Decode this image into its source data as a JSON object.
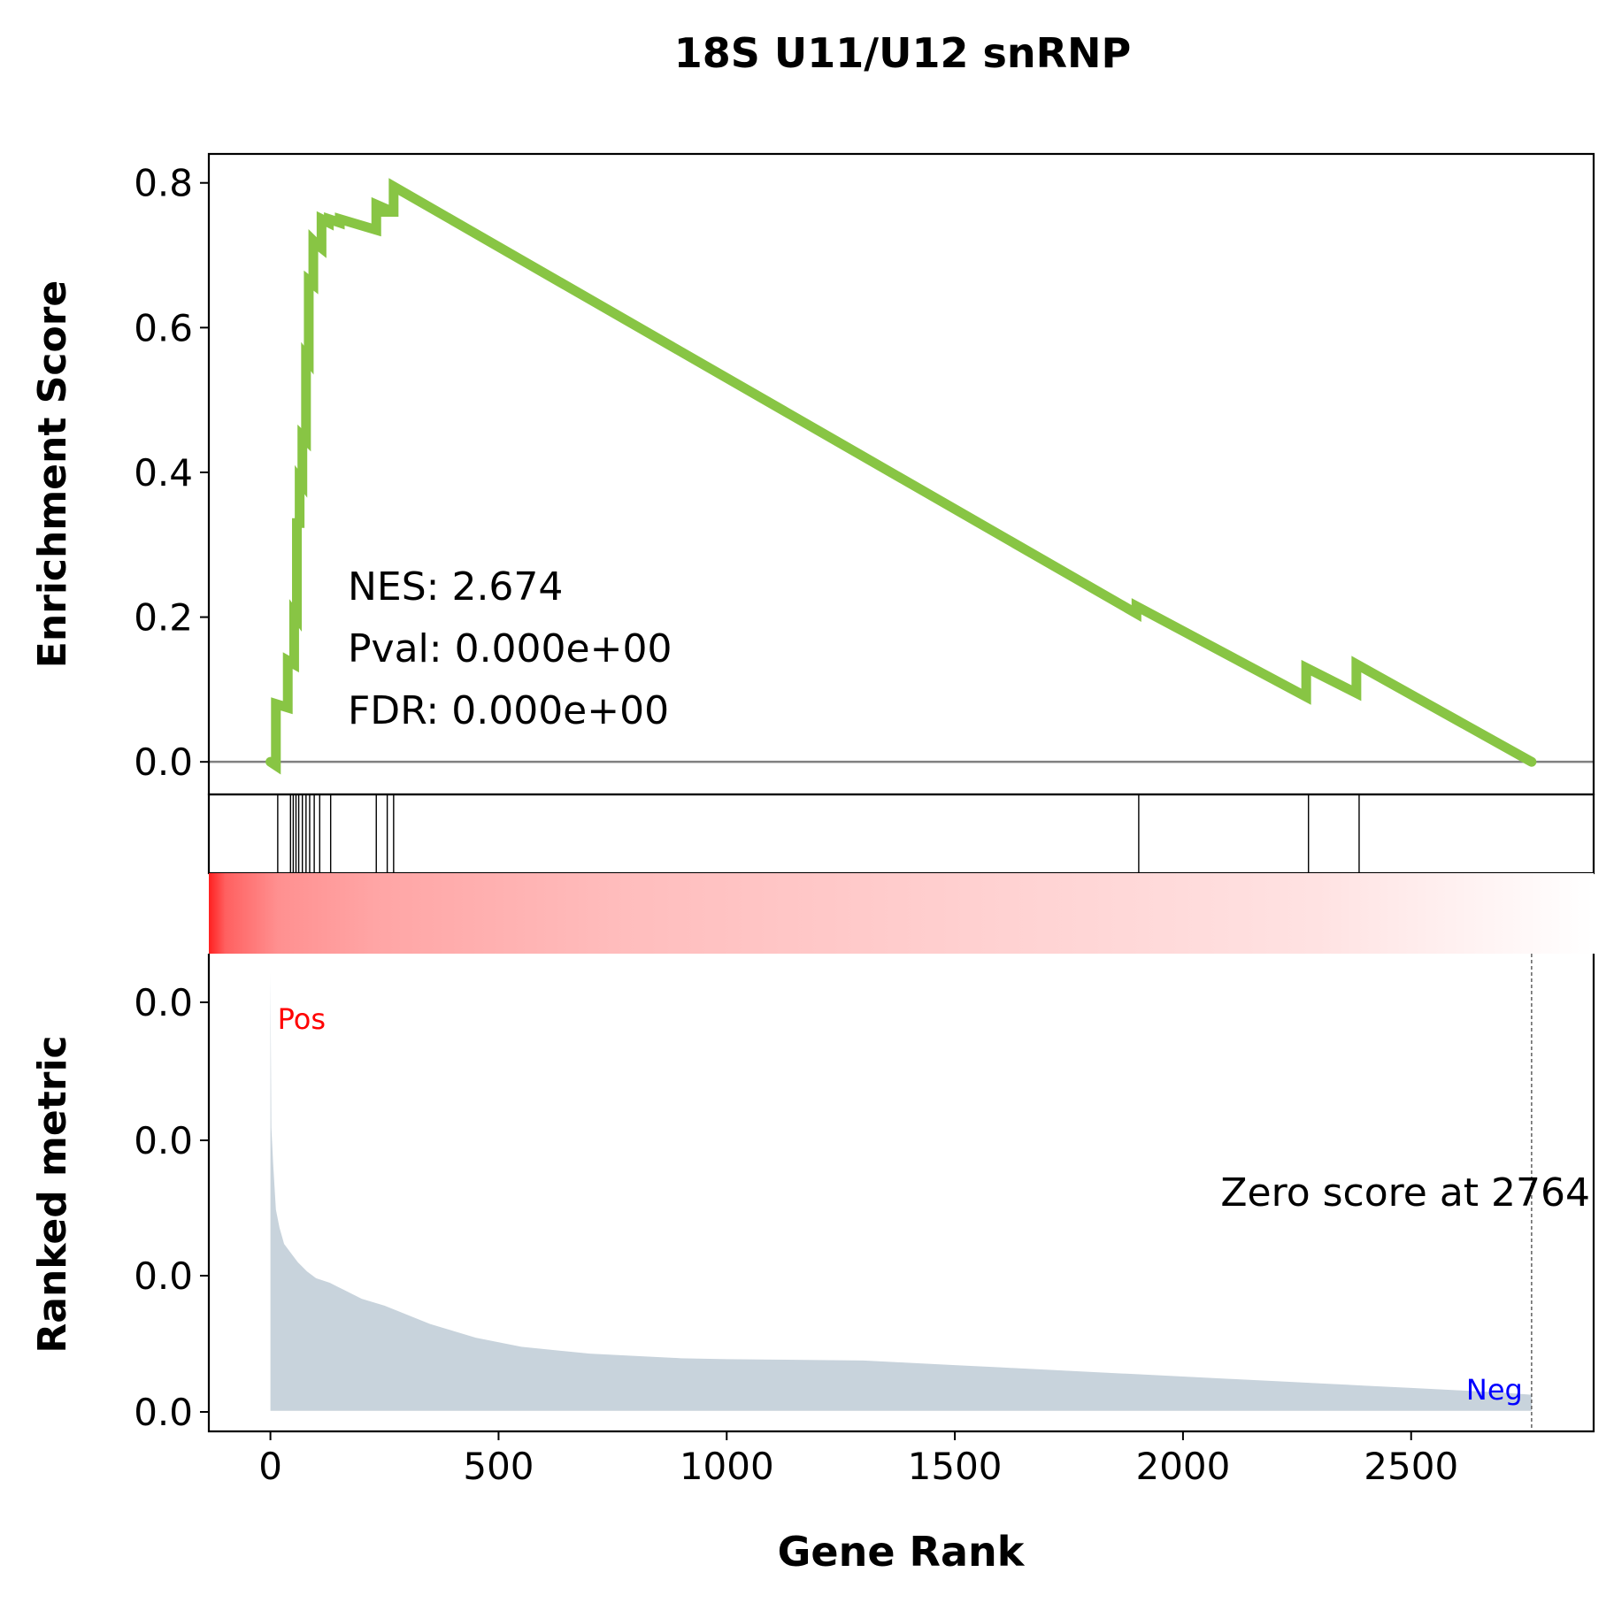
{
  "chart_data": {
    "type": "line",
    "title": "18S U11/U12 snRNP",
    "xlabel": "Gene Rank",
    "xlim": [
      -135,
      2900
    ],
    "xticks": [
      0,
      500,
      1000,
      1500,
      2000,
      2500
    ],
    "grid": false,
    "enrichment_panel": {
      "ylabel": "Enrichment Score",
      "ylim": [
        -0.045,
        0.84
      ],
      "yticks": [
        {
          "value": 0.0,
          "label": "0.0"
        },
        {
          "value": 0.2,
          "label": "0.2"
        },
        {
          "value": 0.4,
          "label": "0.4"
        },
        {
          "value": 0.6,
          "label": "0.6"
        },
        {
          "value": 0.8,
          "label": "0.8"
        }
      ],
      "line_color": "#88c544",
      "zero_line_color": "#808080",
      "series": {
        "x": [
          0,
          12,
          12,
          38,
          38,
          52,
          52,
          58,
          58,
          64,
          64,
          70,
          70,
          78,
          78,
          84,
          84,
          94,
          94,
          102,
          102,
          112,
          112,
          128,
          128,
          152,
          152,
          232,
          232,
          250,
          250,
          270,
          270,
          1898,
          1898,
          2270,
          2270,
          2380,
          2380,
          2764
        ],
        "y": [
          0.0,
          -0.005,
          0.08,
          0.075,
          0.14,
          0.135,
          0.205,
          0.2,
          0.33,
          0.33,
          0.39,
          0.385,
          0.45,
          0.445,
          0.56,
          0.555,
          0.665,
          0.66,
          0.72,
          0.715,
          0.715,
          0.71,
          0.75,
          0.745,
          0.75,
          0.745,
          0.75,
          0.735,
          0.77,
          0.765,
          0.76,
          0.76,
          0.795,
          0.205,
          0.215,
          0.09,
          0.13,
          0.095,
          0.135,
          0.0
        ]
      }
    },
    "stats_annotation": [
      "NES: 2.674",
      "Pval: 0.000e+00",
      "FDR: 0.000e+00"
    ],
    "hit_ranks": [
      16,
      44,
      50,
      56,
      62,
      70,
      78,
      86,
      96,
      108,
      132,
      232,
      256,
      270,
      1903,
      2275,
      2386
    ],
    "ranked_panel": {
      "ylabel": "Ranked metric",
      "ytick_labels": [
        "0.0",
        "0.0",
        "0.0",
        "0.0"
      ],
      "fill_color": "#c8d3dc",
      "ranks": [
        0,
        2,
        6,
        12,
        20,
        30,
        45,
        60,
        80,
        100,
        130,
        160,
        200,
        250,
        300,
        350,
        400,
        450,
        500,
        550,
        600,
        700,
        800,
        900,
        1000,
        1100,
        1200,
        1300,
        1400,
        1500,
        1600,
        1700,
        1800,
        1900,
        2000,
        2100,
        2200,
        2300,
        2400,
        2500,
        2600,
        2700,
        2764
      ],
      "metric": [
        0.96,
        0.62,
        0.54,
        0.44,
        0.4,
        0.365,
        0.345,
        0.325,
        0.305,
        0.29,
        0.28,
        0.265,
        0.245,
        0.23,
        0.21,
        0.19,
        0.175,
        0.16,
        0.15,
        0.14,
        0.135,
        0.125,
        0.12,
        0.115,
        0.113,
        0.112,
        0.111,
        0.11,
        0.105,
        0.1,
        0.095,
        0.09,
        0.085,
        0.08,
        0.075,
        0.07,
        0.065,
        0.06,
        0.055,
        0.05,
        0.045,
        0.04,
        0.035
      ],
      "ylim": [
        -0.045,
        1.0
      ],
      "pos_label": "Pos",
      "neg_label": "Neg",
      "pos_color": "#ff0000",
      "neg_color": "#0000ff",
      "zero_cross_rank": 2764,
      "zero_text": "Zero score at 2764"
    },
    "heatmap": {
      "colors": [
        "#ff2020",
        "#ffffff"
      ]
    }
  }
}
